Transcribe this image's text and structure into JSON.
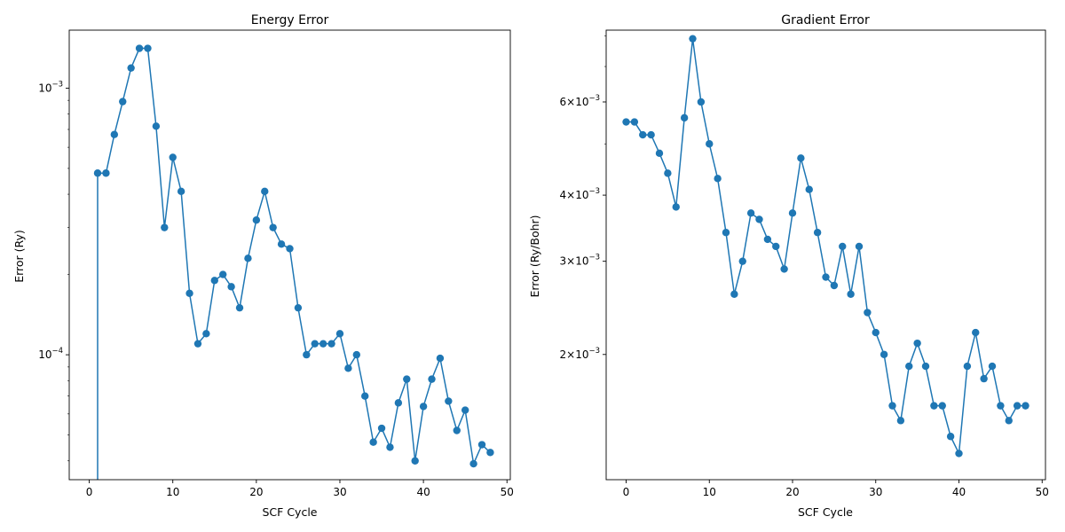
{
  "chart_data": [
    {
      "type": "line",
      "title": "Energy Error",
      "xlabel": "SCF Cycle",
      "ylabel": "Error (Ry)",
      "yscale": "log",
      "xlim": [
        -2.4,
        50.4
      ],
      "ylim": [
        3.4e-05,
        0.00165
      ],
      "xticks": [
        0,
        10,
        20,
        30,
        40,
        50
      ],
      "xtick_labels": [
        "0",
        "10",
        "20",
        "30",
        "40",
        "50"
      ],
      "yticks": [
        0.0001,
        0.001
      ],
      "ytick_labels": [
        {
          "base": "10",
          "exp": "−4"
        },
        {
          "base": "10",
          "exp": "−3"
        }
      ],
      "grid": false,
      "markers": true,
      "color": "#1f77b4",
      "series": [
        {
          "x": [
            1,
            2,
            3,
            4,
            5,
            6,
            7,
            8,
            9,
            10,
            11,
            12,
            13,
            14,
            15,
            16,
            17,
            18,
            19,
            20,
            21,
            22,
            23,
            24,
            25,
            26,
            27,
            28,
            29,
            30,
            31,
            32,
            33,
            34,
            35,
            36,
            37,
            38,
            39,
            40,
            41,
            42,
            43,
            44,
            45,
            46,
            47,
            48
          ],
          "values": [
            0.00048,
            0.00048,
            0.00067,
            0.00089,
            0.00119,
            0.00141,
            0.00141,
            0.00072,
            0.0003,
            0.00055,
            0.00041,
            0.00017,
            0.00011,
            0.00012,
            0.00019,
            0.0002,
            0.00018,
            0.00015,
            0.00023,
            0.00032,
            0.00041,
            0.0003,
            0.00026,
            0.00025,
            0.00015,
            0.0001,
            0.00011,
            0.00011,
            0.00011,
            0.00012,
            8.9e-05,
            0.0001,
            7e-05,
            4.7e-05,
            5.3e-05,
            4.5e-05,
            6.6e-05,
            8.1e-05,
            4e-05,
            6.4e-05,
            8.1e-05,
            9.7e-05,
            6.7e-05,
            5.2e-05,
            6.2e-05,
            3.9e-05,
            4.6e-05,
            4.3e-05
          ],
          "drop_line_from_x": 1
        }
      ]
    },
    {
      "type": "line",
      "title": "Gradient Error",
      "xlabel": "SCF Cycle",
      "ylabel": "Error (Ry/Bohr)",
      "yscale": "log",
      "xlim": [
        -2.4,
        50.4
      ],
      "ylim": [
        0.00116,
        0.0082
      ],
      "xticks": [
        0,
        10,
        20,
        30,
        40,
        50
      ],
      "xtick_labels": [
        "0",
        "10",
        "20",
        "30",
        "40",
        "50"
      ],
      "yticks": [
        0.002,
        0.003,
        0.004,
        0.006
      ],
      "ytick_labels": [
        {
          "base": "2×10",
          "exp": "−3"
        },
        {
          "base": "3×10",
          "exp": "−3"
        },
        {
          "base": "4×10",
          "exp": "−3"
        },
        {
          "base": "6×10",
          "exp": "−3"
        }
      ],
      "grid": false,
      "markers": true,
      "color": "#1f77b4",
      "series": [
        {
          "x": [
            0,
            1,
            2,
            3,
            4,
            5,
            6,
            7,
            8,
            9,
            10,
            11,
            12,
            13,
            14,
            15,
            16,
            17,
            18,
            19,
            20,
            21,
            22,
            23,
            24,
            25,
            26,
            27,
            28,
            29,
            30,
            31,
            32,
            33,
            34,
            35,
            36,
            37,
            38,
            39,
            40,
            41,
            42,
            43,
            44,
            45,
            46,
            47,
            48
          ],
          "values": [
            0.0055,
            0.0055,
            0.0052,
            0.0052,
            0.0048,
            0.0044,
            0.0038,
            0.0056,
            0.0079,
            0.006,
            0.005,
            0.0043,
            0.0034,
            0.0026,
            0.003,
            0.0037,
            0.0036,
            0.0033,
            0.0032,
            0.0029,
            0.0037,
            0.0047,
            0.0041,
            0.0034,
            0.0028,
            0.0027,
            0.0032,
            0.0026,
            0.0032,
            0.0024,
            0.0022,
            0.002,
            0.0016,
            0.0015,
            0.0019,
            0.0021,
            0.0019,
            0.0016,
            0.0016,
            0.0014,
            0.0013,
            0.0019,
            0.0022,
            0.0018,
            0.0019,
            0.0016,
            0.0015,
            0.0016,
            0.0016
          ]
        }
      ]
    }
  ]
}
